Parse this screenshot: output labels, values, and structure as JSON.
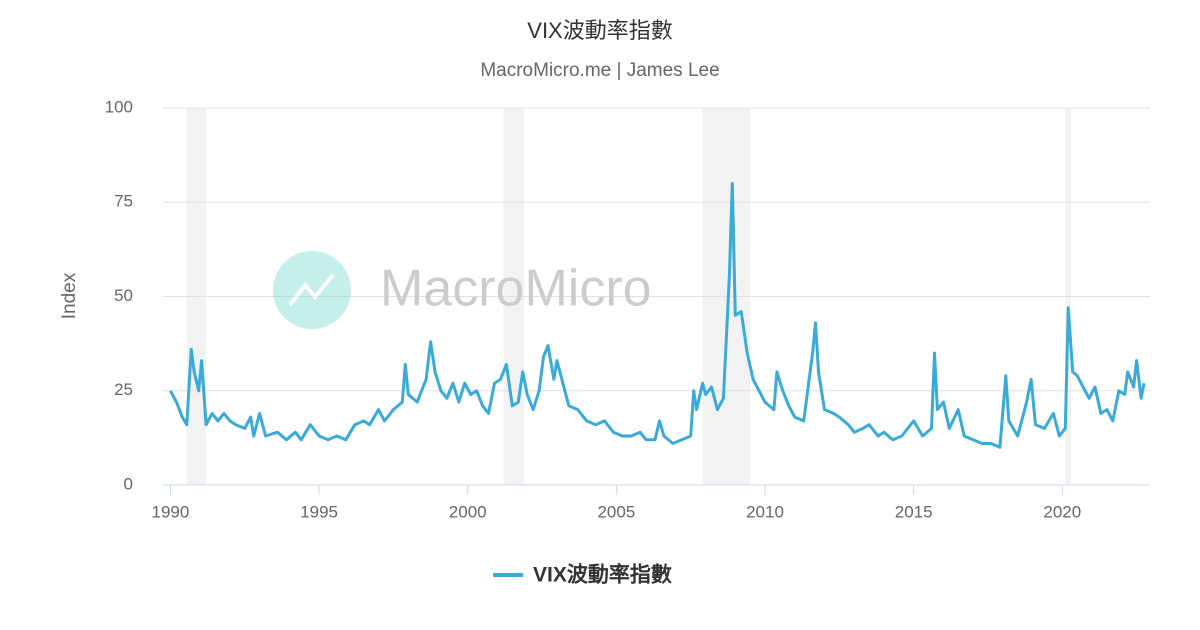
{
  "chart_data": {
    "type": "line",
    "title": "VIX波動率指數",
    "subtitle": "MacroMicro.me | James Lee",
    "watermark": "MacroMicro",
    "y_label": "Index",
    "xlim": [
      1989.75,
      2022.95
    ],
    "ylim": [
      0,
      100
    ],
    "xticks": [
      1990,
      1995,
      2000,
      2005,
      2010,
      2015,
      2020
    ],
    "yticks": [
      0,
      25,
      50,
      75,
      100
    ],
    "grid": true,
    "legend": "bottom",
    "shade_color": "#f2f2f2",
    "shaded_ranges": [
      [
        1990.55,
        1991.2
      ],
      [
        2001.2,
        2001.9
      ],
      [
        2007.9,
        2009.5
      ],
      [
        2020.1,
        2020.3
      ]
    ],
    "x": [
      1990.0,
      1990.2,
      1990.4,
      1990.55,
      1990.7,
      1990.8,
      1990.95,
      1991.05,
      1991.2,
      1991.4,
      1991.6,
      1991.8,
      1992.0,
      1992.2,
      1992.5,
      1992.7,
      1992.8,
      1993.0,
      1993.2,
      1993.6,
      1993.9,
      1994.2,
      1994.4,
      1994.7,
      1995.0,
      1995.3,
      1995.6,
      1995.9,
      1996.2,
      1996.5,
      1996.7,
      1997.0,
      1997.2,
      1997.5,
      1997.8,
      1997.9,
      1998.0,
      1998.3,
      1998.6,
      1998.75,
      1998.9,
      1999.1,
      1999.3,
      1999.5,
      1999.7,
      1999.9,
      2000.1,
      2000.3,
      2000.5,
      2000.7,
      2000.9,
      2001.1,
      2001.3,
      2001.5,
      2001.7,
      2001.85,
      2002.0,
      2002.2,
      2002.4,
      2002.55,
      2002.7,
      2002.9,
      2003.0,
      2003.2,
      2003.4,
      2003.7,
      2004.0,
      2004.3,
      2004.6,
      2004.9,
      2005.2,
      2005.5,
      2005.8,
      2006.0,
      2006.3,
      2006.45,
      2006.6,
      2006.9,
      2007.2,
      2007.5,
      2007.6,
      2007.7,
      2007.9,
      2008.0,
      2008.2,
      2008.4,
      2008.6,
      2008.8,
      2008.9,
      2009.0,
      2009.2,
      2009.4,
      2009.6,
      2009.8,
      2010.0,
      2010.3,
      2010.4,
      2010.6,
      2010.8,
      2011.0,
      2011.3,
      2011.6,
      2011.7,
      2011.8,
      2012.0,
      2012.3,
      2012.5,
      2012.8,
      2013.0,
      2013.3,
      2013.5,
      2013.8,
      2014.0,
      2014.3,
      2014.6,
      2014.9,
      2015.0,
      2015.3,
      2015.6,
      2015.7,
      2015.8,
      2016.0,
      2016.2,
      2016.5,
      2016.7,
      2017.0,
      2017.3,
      2017.6,
      2017.9,
      2018.1,
      2018.2,
      2018.5,
      2018.8,
      2018.95,
      2019.1,
      2019.4,
      2019.7,
      2019.9,
      2020.1,
      2020.2,
      2020.35,
      2020.5,
      2020.7,
      2020.9,
      2021.1,
      2021.3,
      2021.5,
      2021.7,
      2021.9,
      2022.1,
      2022.2,
      2022.4,
      2022.5,
      2022.65,
      2022.75
    ],
    "series": [
      {
        "name": "VIX波動率指數",
        "color": "#3aaad8",
        "values": [
          25,
          22,
          18,
          16,
          36,
          30,
          25,
          33,
          16,
          19,
          17,
          19,
          17,
          16,
          15,
          18,
          13,
          19,
          13,
          14,
          12,
          14,
          12,
          16,
          13,
          12,
          13,
          12,
          16,
          17,
          16,
          20,
          17,
          20,
          22,
          32,
          24,
          22,
          28,
          38,
          30,
          25,
          23,
          27,
          22,
          27,
          24,
          25,
          21,
          19,
          27,
          28,
          32,
          21,
          22,
          30,
          24,
          20,
          25,
          34,
          37,
          28,
          33,
          27,
          21,
          20,
          17,
          16,
          17,
          14,
          13,
          13,
          14,
          12,
          12,
          17,
          13,
          11,
          12,
          13,
          25,
          20,
          27,
          24,
          26,
          20,
          23,
          55,
          80,
          45,
          46,
          35,
          28,
          25,
          22,
          20,
          30,
          25,
          21,
          18,
          17,
          35,
          43,
          30,
          20,
          19,
          18,
          16,
          14,
          15,
          16,
          13,
          14,
          12,
          13,
          16,
          17,
          13,
          15,
          35,
          20,
          22,
          15,
          20,
          13,
          12,
          11,
          11,
          10,
          29,
          17,
          13,
          22,
          28,
          16,
          15,
          19,
          13,
          15,
          47,
          30,
          29,
          26,
          23,
          26,
          19,
          20,
          17,
          25,
          24,
          30,
          26,
          33,
          23,
          27
        ]
      }
    ]
  }
}
